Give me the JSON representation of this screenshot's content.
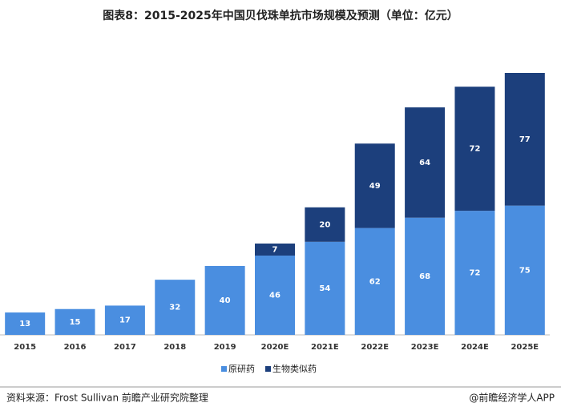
{
  "chart_data": {
    "type": "stacked-bar",
    "title": "图表8：2015-2025年中国贝伐珠单抗市场规模及预测（单位：亿元）",
    "categories": [
      "2015",
      "2016",
      "2017",
      "2018",
      "2019",
      "2020E",
      "2021E",
      "2022E",
      "2023E",
      "2024E",
      "2025E"
    ],
    "series": [
      {
        "name": "原研药",
        "color": "#4a8ee0",
        "values": [
          13,
          15,
          17,
          32,
          40,
          46,
          54,
          62,
          68,
          72,
          75
        ]
      },
      {
        "name": "生物类似药",
        "color": "#1c3f7c",
        "values": [
          null,
          null,
          null,
          null,
          null,
          7,
          20,
          49,
          64,
          72,
          77
        ]
      }
    ],
    "legend": "bottom",
    "source": "资料来源：Frost Sullivan 前瞻产业研究院整理",
    "footer": "@前瞻经济学人APP"
  }
}
